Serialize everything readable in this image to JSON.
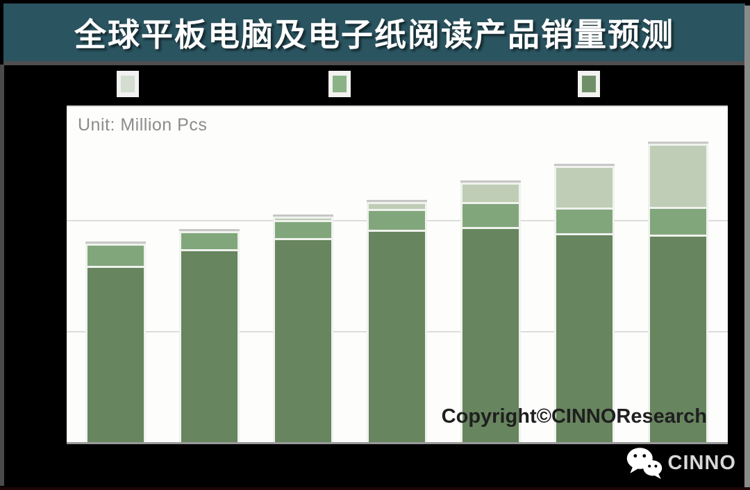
{
  "page": {
    "title": "全球平板电脑及电子纸阅读产品销量预测",
    "unit_label": "Unit: Million Pcs",
    "copyright": "Copyright©CINNOResearch",
    "footer_brand": "CINNO",
    "colors": {
      "title_bar_bg": "#2A5460",
      "page_bg": "#000000",
      "panel_bg": "#FDFDFC",
      "gridline": "#DCDCDC",
      "unit_text": "#8C8C8C",
      "copyright_text": "#1F1F1F",
      "series_dark": "#67855F",
      "series_medium": "#82A67C",
      "series_light": "#BFCDB6"
    },
    "legend": [
      {
        "name": "legend-swatch-light",
        "color": "#D5DCD1"
      },
      {
        "name": "legend-swatch-medium",
        "color": "#8BB286"
      },
      {
        "name": "legend-swatch-dark",
        "color": "#6F8F68"
      }
    ]
  },
  "chart_data": {
    "type": "bar",
    "stacked": true,
    "title": "全球平板电脑及电子纸阅读产品销量预测",
    "unit": "Million Pcs",
    "categories": [
      "",
      "",
      "",
      "",
      "",
      "",
      ""
    ],
    "series": [
      {
        "name": "series-dark-bottom",
        "color": "#67855F",
        "values": [
          159,
          174,
          184,
          191,
          194,
          188,
          187
        ]
      },
      {
        "name": "series-medium-middle",
        "color": "#82A67C",
        "values": [
          20,
          16,
          16,
          19,
          22,
          23,
          25
        ]
      },
      {
        "name": "series-light-top",
        "color": "#BFCDB6",
        "values": [
          0,
          0,
          3,
          6,
          18,
          38,
          57
        ]
      }
    ],
    "totals": [
      179,
      190,
      203,
      216,
      234,
      249,
      269
    ],
    "ylim": [
      0,
      300
    ],
    "gridline_values": [
      100,
      200
    ],
    "xlabel": "",
    "ylabel": "",
    "axis_tick_labels_visible": false,
    "legend_position": "top",
    "grid": true
  }
}
